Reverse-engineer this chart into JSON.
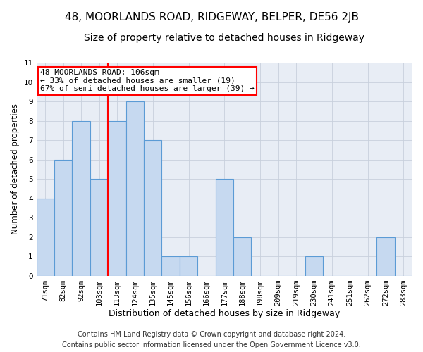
{
  "title": "48, MOORLANDS ROAD, RIDGEWAY, BELPER, DE56 2JB",
  "subtitle": "Size of property relative to detached houses in Ridgeway",
  "xlabel": "Distribution of detached houses by size in Ridgeway",
  "ylabel": "Number of detached properties",
  "footer_line1": "Contains HM Land Registry data © Crown copyright and database right 2024.",
  "footer_line2": "Contains public sector information licensed under the Open Government Licence v3.0.",
  "annotation_line1": "48 MOORLANDS ROAD: 106sqm",
  "annotation_line2": "← 33% of detached houses are smaller (19)",
  "annotation_line3": "67% of semi-detached houses are larger (39) →",
  "categories": [
    "71sqm",
    "82sqm",
    "92sqm",
    "103sqm",
    "113sqm",
    "124sqm",
    "135sqm",
    "145sqm",
    "156sqm",
    "166sqm",
    "177sqm",
    "188sqm",
    "198sqm",
    "209sqm",
    "219sqm",
    "230sqm",
    "241sqm",
    "251sqm",
    "262sqm",
    "272sqm",
    "283sqm"
  ],
  "values": [
    4,
    6,
    8,
    5,
    8,
    9,
    7,
    1,
    1,
    0,
    5,
    2,
    0,
    0,
    0,
    1,
    0,
    0,
    0,
    2,
    0
  ],
  "bar_color": "#c6d9f0",
  "bar_edge_color": "#5b9bd5",
  "vline_color": "red",
  "annotation_box_edge": "red",
  "grid_color": "#c8d0dc",
  "background_color": "#e8edf5",
  "ylim": [
    0,
    11
  ],
  "yticks": [
    0,
    1,
    2,
    3,
    4,
    5,
    6,
    7,
    8,
    9,
    10,
    11
  ],
  "title_fontsize": 11,
  "subtitle_fontsize": 10,
  "ylabel_fontsize": 8.5,
  "xlabel_fontsize": 9,
  "tick_fontsize": 7.5,
  "annotation_fontsize": 8,
  "footer_fontsize": 7
}
